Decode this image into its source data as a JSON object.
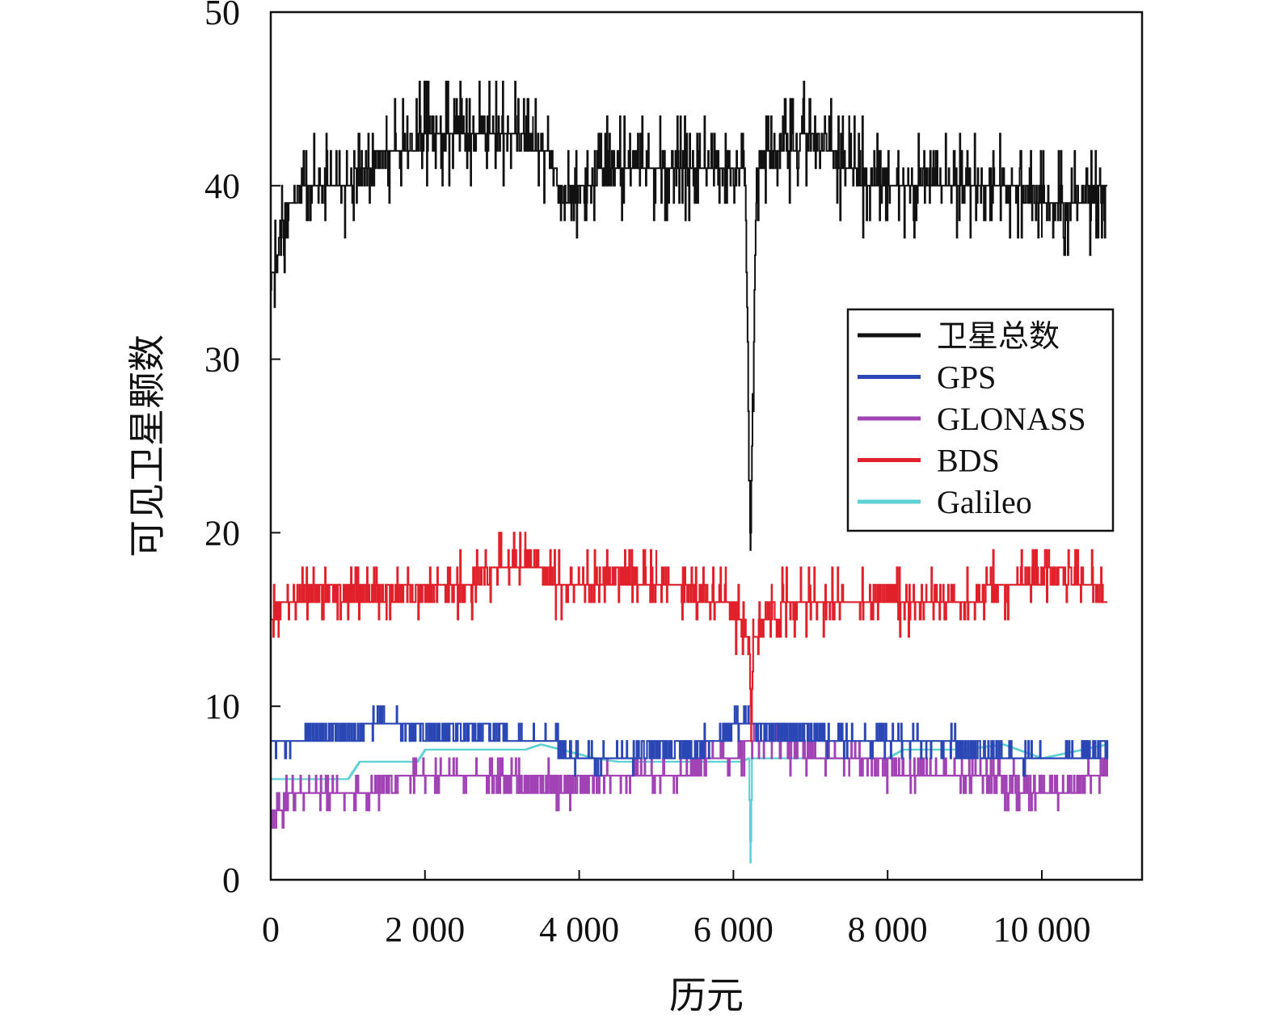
{
  "chart_data": {
    "type": "line",
    "xlabel": "历元",
    "ylabel": "可见卫星颗数",
    "xlim": [
      0,
      11300
    ],
    "ylim": [
      0,
      50
    ],
    "x_ticks": [
      {
        "value": 0,
        "label": "0"
      },
      {
        "value": 2000,
        "label": "2 000"
      },
      {
        "value": 4000,
        "label": "4 000"
      },
      {
        "value": 6000,
        "label": "6 000"
      },
      {
        "value": 8000,
        "label": "8 000"
      },
      {
        "value": 10000,
        "label": "10 000"
      }
    ],
    "y_ticks": [
      {
        "value": 0,
        "label": "0"
      },
      {
        "value": 10,
        "label": "10"
      },
      {
        "value": 20,
        "label": "20"
      },
      {
        "value": 30,
        "label": "30"
      },
      {
        "value": 40,
        "label": "40"
      },
      {
        "value": 50,
        "label": "50"
      }
    ],
    "grid": false,
    "legend_position": "right-middle",
    "series": [
      {
        "name": "卫星总数",
        "color": "#111111",
        "stroke_width": 2.0,
        "fluctuation": 2.0,
        "points": [
          [
            0,
            34
          ],
          [
            150,
            38
          ],
          [
            400,
            40
          ],
          [
            700,
            40
          ],
          [
            1000,
            40
          ],
          [
            1300,
            41
          ],
          [
            1500,
            42
          ],
          [
            1800,
            42
          ],
          [
            2100,
            43
          ],
          [
            2500,
            43
          ],
          [
            2800,
            43
          ],
          [
            3100,
            43
          ],
          [
            3400,
            42
          ],
          [
            3600,
            42
          ],
          [
            3800,
            39
          ],
          [
            4100,
            40
          ],
          [
            4500,
            41
          ],
          [
            5000,
            41
          ],
          [
            5500,
            41
          ],
          [
            5800,
            41
          ],
          [
            6000,
            41
          ],
          [
            6150,
            41
          ],
          [
            6220,
            19
          ],
          [
            6300,
            41
          ],
          [
            6600,
            42
          ],
          [
            7000,
            43
          ],
          [
            7500,
            41
          ],
          [
            8000,
            40
          ],
          [
            8500,
            40
          ],
          [
            9000,
            40
          ],
          [
            9500,
            40
          ],
          [
            10000,
            39
          ],
          [
            10500,
            39
          ],
          [
            10850,
            40
          ]
        ]
      },
      {
        "name": "GPS",
        "color": "#2b47b5",
        "stroke_width": 2.2,
        "fluctuation": 0.6,
        "points": [
          [
            0,
            7.5
          ],
          [
            300,
            8
          ],
          [
            600,
            8.5
          ],
          [
            1200,
            8.5
          ],
          [
            1400,
            9.6
          ],
          [
            1700,
            9
          ],
          [
            1900,
            8.5
          ],
          [
            2500,
            8.5
          ],
          [
            3000,
            8.5
          ],
          [
            3500,
            8
          ],
          [
            3800,
            7.5
          ],
          [
            4200,
            7
          ],
          [
            4600,
            7
          ],
          [
            4800,
            7.5
          ],
          [
            5500,
            7.5
          ],
          [
            5900,
            8.5
          ],
          [
            6200,
            9.5
          ],
          [
            6300,
            8.5
          ],
          [
            7000,
            8.5
          ],
          [
            7500,
            8
          ],
          [
            8000,
            8.3
          ],
          [
            8500,
            8
          ],
          [
            9000,
            7.5
          ],
          [
            9500,
            7.3
          ],
          [
            10000,
            7
          ],
          [
            10500,
            7.3
          ],
          [
            10850,
            7.5
          ]
        ]
      },
      {
        "name": "GLONASS",
        "color": "#a142b5",
        "stroke_width": 2.2,
        "fluctuation": 0.8,
        "points": [
          [
            0,
            3
          ],
          [
            200,
            4.5
          ],
          [
            500,
            5
          ],
          [
            1000,
            5
          ],
          [
            1500,
            5.5
          ],
          [
            2000,
            6
          ],
          [
            2500,
            6
          ],
          [
            3000,
            5.5
          ],
          [
            3500,
            5.5
          ],
          [
            4000,
            5.5
          ],
          [
            4500,
            6
          ],
          [
            5000,
            6
          ],
          [
            5500,
            6.5
          ],
          [
            6000,
            7
          ],
          [
            6300,
            8.5
          ],
          [
            6500,
            7.8
          ],
          [
            7000,
            7.5
          ],
          [
            7500,
            7
          ],
          [
            8000,
            6.5
          ],
          [
            8500,
            6
          ],
          [
            9000,
            6
          ],
          [
            9500,
            5.5
          ],
          [
            10000,
            5
          ],
          [
            10500,
            5.5
          ],
          [
            10850,
            6.5
          ]
        ]
      },
      {
        "name": "BDS",
        "color": "#e0202a",
        "stroke_width": 2.2,
        "fluctuation": 1.2,
        "points": [
          [
            0,
            15
          ],
          [
            100,
            16
          ],
          [
            500,
            16.5
          ],
          [
            1000,
            16.5
          ],
          [
            1500,
            16.5
          ],
          [
            2000,
            16.5
          ],
          [
            2500,
            17
          ],
          [
            3000,
            18
          ],
          [
            3300,
            18.5
          ],
          [
            3700,
            17
          ],
          [
            4000,
            17
          ],
          [
            4500,
            17.5
          ],
          [
            5000,
            17
          ],
          [
            5500,
            16.5
          ],
          [
            5900,
            16
          ],
          [
            6200,
            14
          ],
          [
            6230,
            8.5
          ],
          [
            6260,
            14
          ],
          [
            6500,
            15.5
          ],
          [
            7000,
            16
          ],
          [
            7500,
            16
          ],
          [
            8000,
            16.5
          ],
          [
            8500,
            16
          ],
          [
            9000,
            16
          ],
          [
            9500,
            17
          ],
          [
            10000,
            17.5
          ],
          [
            10500,
            17.5
          ],
          [
            10850,
            16
          ]
        ]
      },
      {
        "name": "Galileo",
        "color": "#5fd0d4",
        "stroke_width": 2.2,
        "fluctuation": 0.0,
        "points": [
          [
            0,
            5.8
          ],
          [
            1000,
            5.8
          ],
          [
            1150,
            6.8
          ],
          [
            1900,
            6.8
          ],
          [
            2000,
            7.5
          ],
          [
            3300,
            7.5
          ],
          [
            3500,
            7.8
          ],
          [
            4200,
            7
          ],
          [
            4500,
            6.8
          ],
          [
            6100,
            6.8
          ],
          [
            6200,
            7
          ],
          [
            6220,
            1
          ],
          [
            6240,
            7
          ],
          [
            8000,
            7
          ],
          [
            8200,
            7.5
          ],
          [
            9000,
            7.5
          ],
          [
            9500,
            7.8
          ],
          [
            10000,
            7
          ],
          [
            10850,
            7.8
          ]
        ]
      }
    ]
  }
}
